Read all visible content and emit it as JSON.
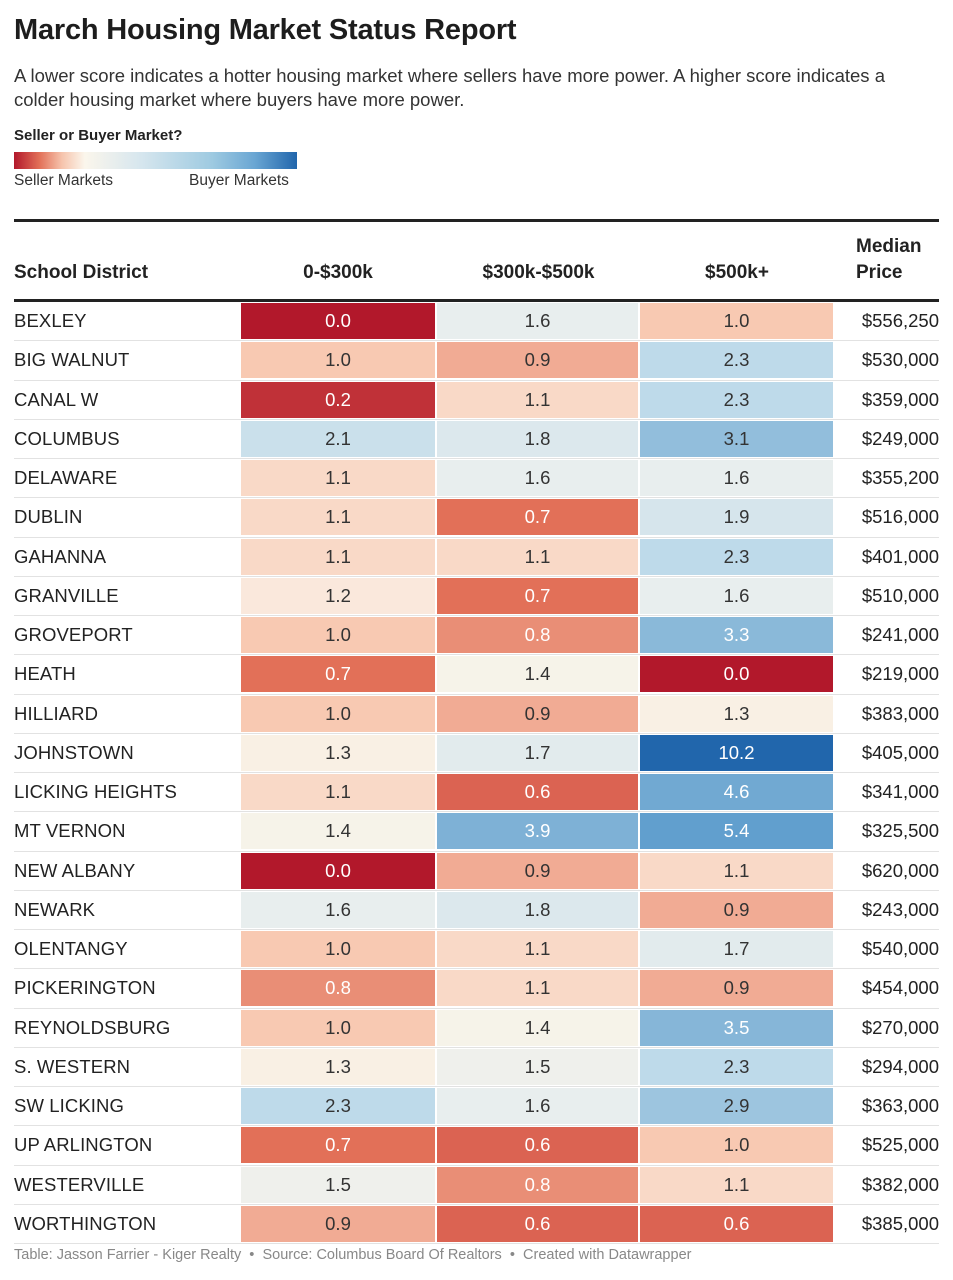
{
  "title": "March Housing Market Status Report",
  "subtitle": "A lower score indicates a hotter housing market where sellers have more power. A higher score indicates a colder housing market where buyers have more power.",
  "legend": {
    "title": "Seller or Buyer Market?",
    "left_label": "Seller Markets",
    "right_label": "Buyer Markets",
    "colors": [
      "#b2182b",
      "#e27058",
      "#f6c4ad",
      "#fbf6ec",
      "#d6e6ee",
      "#9ecae1",
      "#6aa6d3",
      "#2166ac"
    ]
  },
  "footer": {
    "byline": "Table: Jasson Farrier - Kiger Realty",
    "source": "Source: Columbus Board Of Realtors",
    "credit": "Created with Datawrapper"
  },
  "chart_data": {
    "type": "table",
    "columns": [
      "School District",
      "0-$300k",
      "$300k-$500k",
      "$500k+",
      "Median Price"
    ],
    "rows": [
      {
        "district": "BEXLEY",
        "values": [
          0.0,
          1.6,
          1.0
        ],
        "median": "$556,250"
      },
      {
        "district": "BIG WALNUT",
        "values": [
          1.0,
          0.9,
          2.3
        ],
        "median": "$530,000"
      },
      {
        "district": "CANAL W",
        "values": [
          0.2,
          1.1,
          2.3
        ],
        "median": "$359,000"
      },
      {
        "district": "COLUMBUS",
        "values": [
          2.1,
          1.8,
          3.1
        ],
        "median": "$249,000"
      },
      {
        "district": "DELAWARE",
        "values": [
          1.1,
          1.6,
          1.6
        ],
        "median": "$355,200"
      },
      {
        "district": "DUBLIN",
        "values": [
          1.1,
          0.7,
          1.9
        ],
        "median": "$516,000"
      },
      {
        "district": "GAHANNA",
        "values": [
          1.1,
          1.1,
          2.3
        ],
        "median": "$401,000"
      },
      {
        "district": "GRANVILLE",
        "values": [
          1.2,
          0.7,
          1.6
        ],
        "median": "$510,000"
      },
      {
        "district": "GROVEPORT",
        "values": [
          1.0,
          0.8,
          3.3
        ],
        "median": "$241,000"
      },
      {
        "district": "HEATH",
        "values": [
          0.7,
          1.4,
          0.0
        ],
        "median": "$219,000"
      },
      {
        "district": "HILLIARD",
        "values": [
          1.0,
          0.9,
          1.3
        ],
        "median": "$383,000"
      },
      {
        "district": "JOHNSTOWN",
        "values": [
          1.3,
          1.7,
          10.2
        ],
        "median": "$405,000"
      },
      {
        "district": "LICKING HEIGHTS",
        "values": [
          1.1,
          0.6,
          4.6
        ],
        "median": "$341,000"
      },
      {
        "district": "MT VERNON",
        "values": [
          1.4,
          3.9,
          5.4
        ],
        "median": "$325,500"
      },
      {
        "district": "NEW ALBANY",
        "values": [
          0.0,
          0.9,
          1.1
        ],
        "median": "$620,000"
      },
      {
        "district": "NEWARK",
        "values": [
          1.6,
          1.8,
          0.9
        ],
        "median": "$243,000"
      },
      {
        "district": "OLENTANGY",
        "values": [
          1.0,
          1.1,
          1.7
        ],
        "median": "$540,000"
      },
      {
        "district": "PICKERINGTON",
        "values": [
          0.8,
          1.1,
          0.9
        ],
        "median": "$454,000"
      },
      {
        "district": "REYNOLDSBURG",
        "values": [
          1.0,
          1.4,
          3.5
        ],
        "median": "$270,000"
      },
      {
        "district": "S. WESTERN",
        "values": [
          1.3,
          1.5,
          2.3
        ],
        "median": "$294,000"
      },
      {
        "district": "SW LICKING",
        "values": [
          2.3,
          1.6,
          2.9
        ],
        "median": "$363,000"
      },
      {
        "district": "UP ARLINGTON",
        "values": [
          0.7,
          0.6,
          1.0
        ],
        "median": "$525,000"
      },
      {
        "district": "WESTERVILLE",
        "values": [
          1.5,
          0.8,
          1.1
        ],
        "median": "$382,000"
      },
      {
        "district": "WORTHINGTON",
        "values": [
          0.9,
          0.6,
          0.6
        ],
        "median": "$385,000"
      }
    ]
  },
  "header": {
    "district": "School District",
    "c1": "0-$300k",
    "c2": "$300k-$500k",
    "c3": "$500k+",
    "median_line1": "Median",
    "median_line2": "Price"
  }
}
